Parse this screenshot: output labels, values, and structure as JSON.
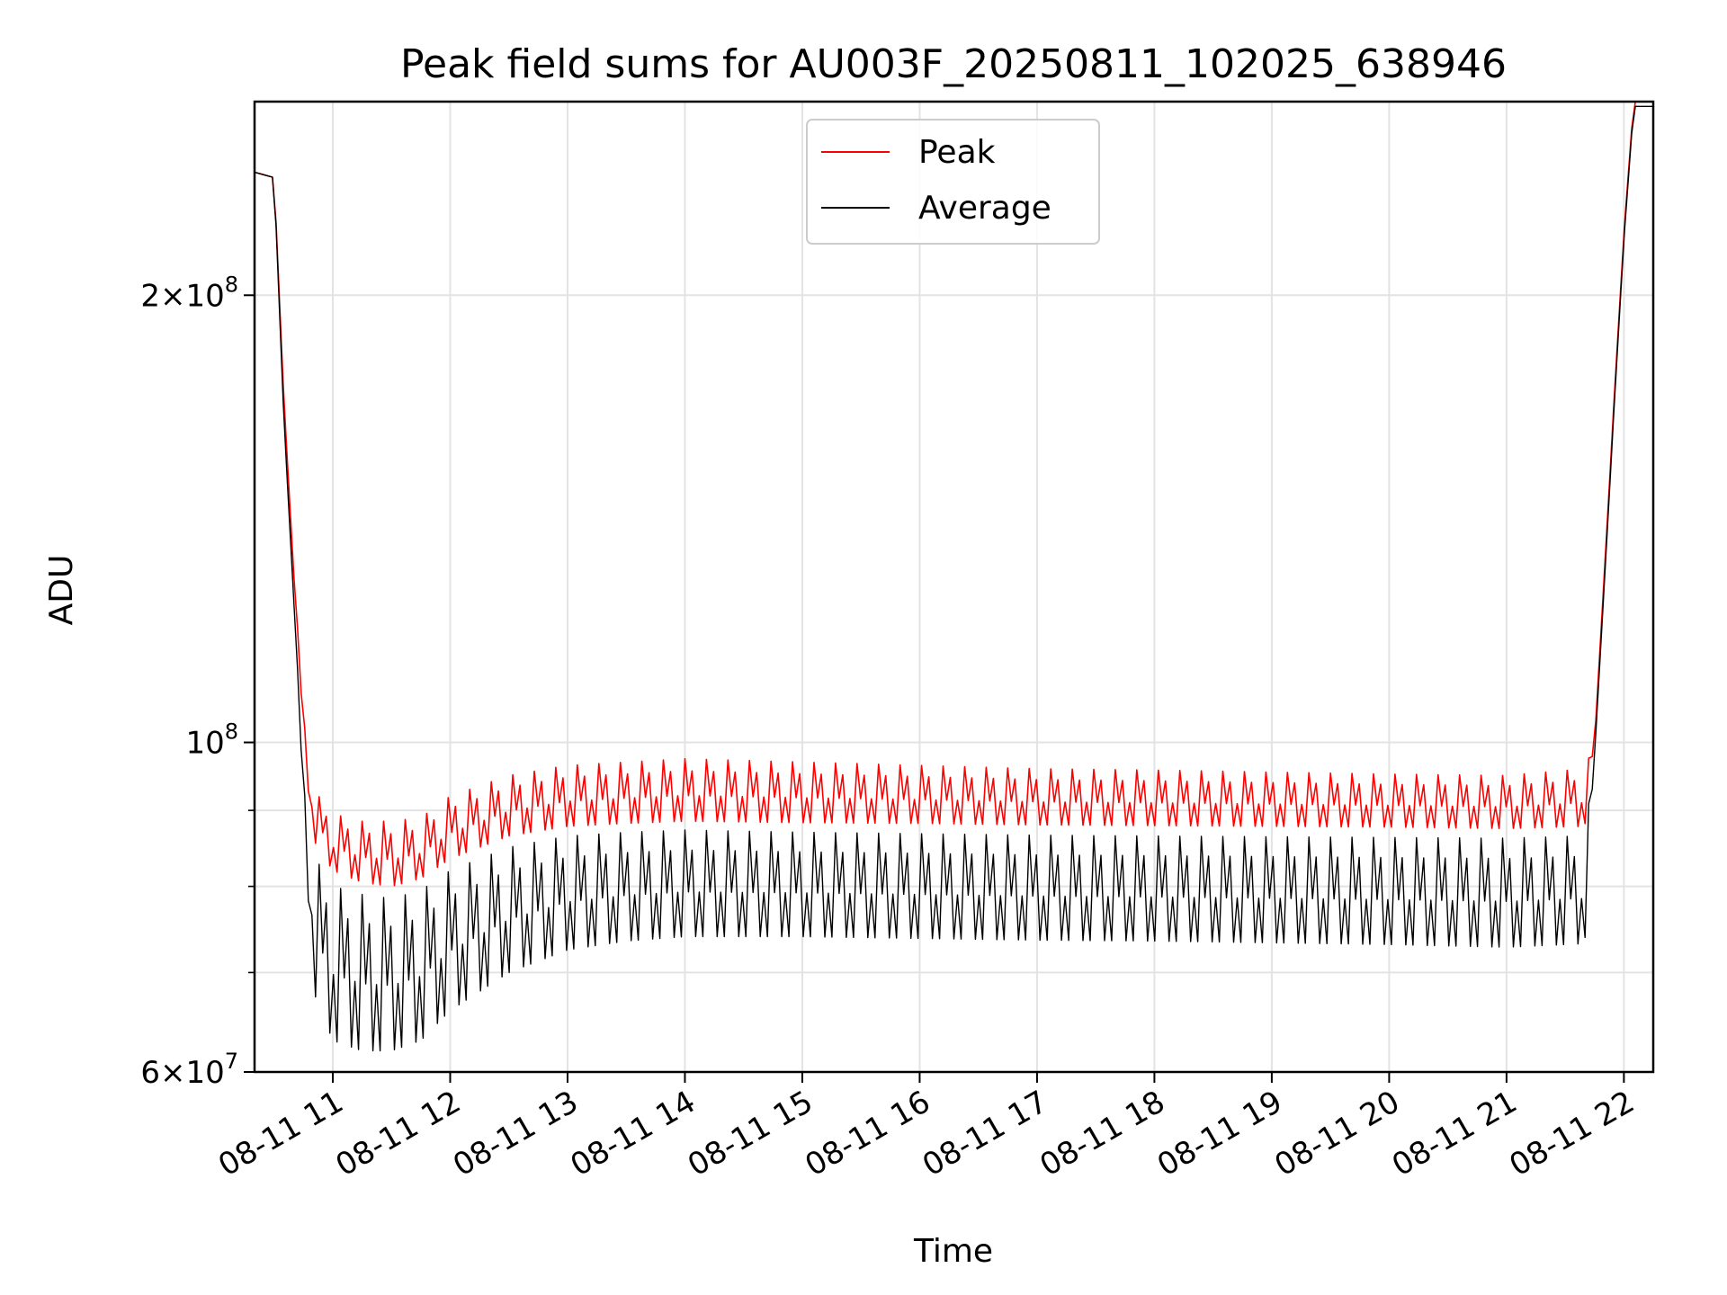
{
  "chart_data": {
    "type": "line",
    "title": "Peak field sums for AU003F_20250811_102025_638946",
    "xlabel": "Time",
    "ylabel": "ADU",
    "y_scale": "log",
    "ylim": [
      60000000,
      270000000
    ],
    "xlim": [
      "2025-08-11 10:20",
      "2025-08-11 22:15"
    ],
    "grid": true,
    "legend": {
      "position": "top-center",
      "entries": [
        "Peak",
        "Average"
      ]
    },
    "x_ticks": [
      {
        "value": "2025-08-11 11:00",
        "label": "08-11 11"
      },
      {
        "value": "2025-08-11 12:00",
        "label": "08-11 12"
      },
      {
        "value": "2025-08-11 13:00",
        "label": "08-11 13"
      },
      {
        "value": "2025-08-11 14:00",
        "label": "08-11 14"
      },
      {
        "value": "2025-08-11 15:00",
        "label": "08-11 15"
      },
      {
        "value": "2025-08-11 16:00",
        "label": "08-11 16"
      },
      {
        "value": "2025-08-11 17:00",
        "label": "08-11 17"
      },
      {
        "value": "2025-08-11 18:00",
        "label": "08-11 18"
      },
      {
        "value": "2025-08-11 19:00",
        "label": "08-11 19"
      },
      {
        "value": "2025-08-11 20:00",
        "label": "08-11 20"
      },
      {
        "value": "2025-08-11 21:00",
        "label": "08-11 21"
      },
      {
        "value": "2025-08-11 22:00",
        "label": "08-11 22"
      }
    ],
    "y_ticks": [
      {
        "value": 60000000,
        "base": "6",
        "exp": "7"
      },
      {
        "value": 100000000,
        "base": "",
        "exp": "8"
      },
      {
        "value": 200000000,
        "base": "2",
        "exp": "8"
      }
    ],
    "y_minor_ticks": [
      70000000,
      80000000,
      90000000
    ],
    "series": [
      {
        "name": "Peak",
        "color": "#ff0000",
        "x": [
          "2025-08-11 10:20",
          "2025-08-11 10:30",
          "2025-08-11 10:35",
          "2025-08-11 10:40",
          "2025-08-11 10:45",
          "2025-08-11 10:50",
          "2025-08-11 11:00",
          "2025-08-11 11:15",
          "2025-08-11 11:30",
          "2025-08-11 11:45",
          "2025-08-11 12:00",
          "2025-08-11 12:30",
          "2025-08-11 13:00",
          "2025-08-11 13:30",
          "2025-08-11 14:00",
          "2025-08-11 15:00",
          "2025-08-11 16:00",
          "2025-08-11 17:00",
          "2025-08-11 18:00",
          "2025-08-11 19:00",
          "2025-08-11 20:00",
          "2025-08-11 21:00",
          "2025-08-11 21:40",
          "2025-08-11 21:45",
          "2025-08-11 21:50",
          "2025-08-11 21:55",
          "2025-08-11 22:00",
          "2025-08-11 22:05",
          "2025-08-11 22:15"
        ],
        "high": [
          242000000,
          240000000,
          170000000,
          130000000,
          105000000,
          93000000,
          89500000,
          88500000,
          88500000,
          89000000,
          92000000,
          95000000,
          96500000,
          97000000,
          97500000,
          97000000,
          96500000,
          96000000,
          95800000,
          95500000,
          95200000,
          95000000,
          96000000,
          100000000,
          130000000,
          170000000,
          220000000,
          270000000,
          270000000
        ],
        "low": [
          242000000,
          240000000,
          170000000,
          130000000,
          100000000,
          86000000,
          82000000,
          80500000,
          80000000,
          81000000,
          83500000,
          86500000,
          87800000,
          88200000,
          88500000,
          88300000,
          88200000,
          88000000,
          87900000,
          87800000,
          87700000,
          87500000,
          87800000,
          100000000,
          130000000,
          170000000,
          220000000,
          270000000,
          270000000
        ]
      },
      {
        "name": "Average",
        "color": "#000000",
        "x": [
          "2025-08-11 10:20",
          "2025-08-11 10:30",
          "2025-08-11 10:35",
          "2025-08-11 10:40",
          "2025-08-11 10:45",
          "2025-08-11 10:50",
          "2025-08-11 11:00",
          "2025-08-11 11:15",
          "2025-08-11 11:30",
          "2025-08-11 11:45",
          "2025-08-11 12:00",
          "2025-08-11 12:30",
          "2025-08-11 13:00",
          "2025-08-11 13:30",
          "2025-08-11 14:00",
          "2025-08-11 15:00",
          "2025-08-11 16:00",
          "2025-08-11 17:00",
          "2025-08-11 18:00",
          "2025-08-11 19:00",
          "2025-08-11 20:00",
          "2025-08-11 21:00",
          "2025-08-11 21:40",
          "2025-08-11 21:45",
          "2025-08-11 21:50",
          "2025-08-11 21:55",
          "2025-08-11 22:00",
          "2025-08-11 22:05",
          "2025-08-11 22:15"
        ],
        "high": [
          242000000,
          240000000,
          165000000,
          125000000,
          95000000,
          84000000,
          80000000,
          79000000,
          78500000,
          79500000,
          82000000,
          85000000,
          86500000,
          87000000,
          87300000,
          87000000,
          86800000,
          86600000,
          86500000,
          86400000,
          86300000,
          86200000,
          86500000,
          98000000,
          128000000,
          168000000,
          218000000,
          268000000,
          268000000
        ],
        "low": [
          242000000,
          240000000,
          165000000,
          125000000,
          90000000,
          68000000,
          63000000,
          62000000,
          62000000,
          63000000,
          66000000,
          70000000,
          72500000,
          73500000,
          74000000,
          74000000,
          73800000,
          73600000,
          73500000,
          73300000,
          73100000,
          72800000,
          73200000,
          98000000,
          128000000,
          168000000,
          218000000,
          268000000,
          268000000
        ]
      }
    ]
  }
}
